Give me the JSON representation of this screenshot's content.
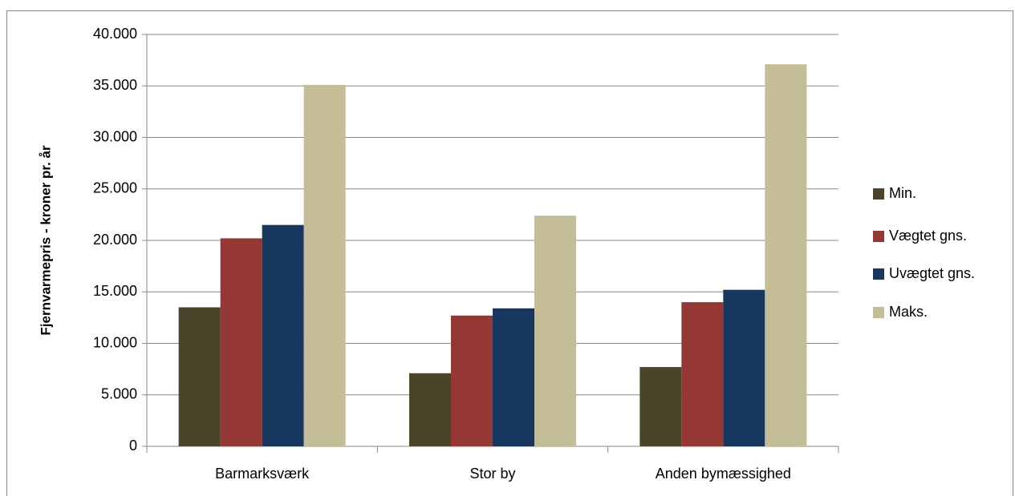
{
  "chart_data": {
    "type": "bar",
    "y_axis_label": "Fjernvarmepris - kroner pr. år",
    "categories": [
      "Barmarksværk",
      "Stor by",
      "Anden bymæssighed"
    ],
    "series": [
      {
        "name": "Min.",
        "color": "#4a452a",
        "values": [
          13500,
          7100,
          7700
        ]
      },
      {
        "name": "Vægtet gns.",
        "color": "#953735",
        "values": [
          20200,
          12700,
          14000
        ]
      },
      {
        "name": "Uvægtet gns.",
        "color": "#17375e",
        "values": [
          21500,
          13400,
          15200
        ]
      },
      {
        "name": "Maks.",
        "color": "#c4bd97",
        "values": [
          35100,
          22400,
          37100
        ]
      }
    ],
    "ylim": [
      0,
      40000
    ],
    "yticks": [
      0,
      {
        "value": 5000,
        "label": "5.000"
      },
      {
        "value": 10000,
        "label": "10.000"
      },
      {
        "value": 15000,
        "label": "15.000"
      },
      {
        "value": 20000,
        "label": "20.000"
      },
      {
        "value": 25000,
        "label": "25.000"
      },
      {
        "value": 30000,
        "label": "30.000"
      },
      {
        "value": 35000,
        "label": "35.000"
      },
      {
        "value": 40000,
        "label": "40.000"
      }
    ],
    "grid": true,
    "legend": "right"
  }
}
